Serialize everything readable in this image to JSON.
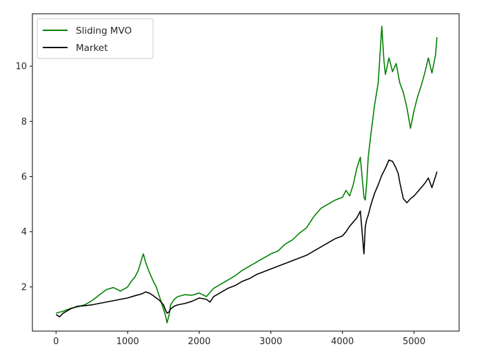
{
  "chart_data": {
    "type": "line",
    "title": "",
    "xlabel": "",
    "ylabel": "",
    "xlim": [
      -330,
      5630
    ],
    "ylim": [
      0.4,
      11.9
    ],
    "x_ticks": [
      0,
      1000,
      2000,
      3000,
      4000,
      5000
    ],
    "y_ticks": [
      2,
      4,
      6,
      8,
      10
    ],
    "grid": false,
    "legend_position": "top-left",
    "series": [
      {
        "name": "Sliding MVO",
        "color": "#008000",
        "x": [
          0,
          100,
          200,
          300,
          400,
          500,
          600,
          700,
          800,
          900,
          1000,
          1050,
          1100,
          1150,
          1200,
          1220,
          1250,
          1300,
          1350,
          1400,
          1450,
          1500,
          1530,
          1550,
          1580,
          1600,
          1650,
          1700,
          1800,
          1900,
          2000,
          2100,
          2150,
          2200,
          2300,
          2400,
          2500,
          2600,
          2700,
          2800,
          2900,
          3000,
          3100,
          3200,
          3300,
          3400,
          3500,
          3600,
          3700,
          3800,
          3900,
          4000,
          4050,
          4100,
          4150,
          4200,
          4250,
          4300,
          4320,
          4340,
          4360,
          4400,
          4450,
          4500,
          4550,
          4580,
          4600,
          4650,
          4700,
          4750,
          4800,
          4850,
          4900,
          4950,
          5000,
          5050,
          5100,
          5150,
          5200,
          5250,
          5300,
          5320
        ],
        "values": [
          1.05,
          1.12,
          1.22,
          1.28,
          1.35,
          1.5,
          1.7,
          1.9,
          1.98,
          1.85,
          2.0,
          2.2,
          2.35,
          2.6,
          3.05,
          3.2,
          2.9,
          2.55,
          2.25,
          2.0,
          1.6,
          1.2,
          0.95,
          0.7,
          1.0,
          1.35,
          1.55,
          1.65,
          1.72,
          1.7,
          1.78,
          1.65,
          1.8,
          1.95,
          2.1,
          2.25,
          2.4,
          2.6,
          2.75,
          2.9,
          3.05,
          3.2,
          3.3,
          3.55,
          3.7,
          3.95,
          4.15,
          4.55,
          4.85,
          5.0,
          5.15,
          5.25,
          5.5,
          5.3,
          5.7,
          6.3,
          6.7,
          5.25,
          5.15,
          5.8,
          6.7,
          7.6,
          8.6,
          9.4,
          11.45,
          10.2,
          9.7,
          10.3,
          9.8,
          10.1,
          9.4,
          9.05,
          8.5,
          7.75,
          8.4,
          8.9,
          9.3,
          9.75,
          10.3,
          9.75,
          10.4,
          11.05
        ]
      },
      {
        "name": "Market",
        "color": "#000000",
        "x": [
          0,
          50,
          100,
          200,
          300,
          400,
          500,
          600,
          700,
          800,
          900,
          1000,
          1100,
          1200,
          1250,
          1300,
          1350,
          1400,
          1450,
          1500,
          1530,
          1550,
          1580,
          1600,
          1650,
          1700,
          1800,
          1900,
          2000,
          2100,
          2150,
          2200,
          2300,
          2400,
          2500,
          2600,
          2700,
          2800,
          2900,
          3000,
          3100,
          3200,
          3300,
          3400,
          3500,
          3600,
          3700,
          3800,
          3900,
          4000,
          4050,
          4100,
          4150,
          4200,
          4250,
          4300,
          4320,
          4340,
          4360,
          4400,
          4450,
          4500,
          4550,
          4600,
          4650,
          4700,
          4750,
          4780,
          4800,
          4850,
          4900,
          4950,
          5000,
          5050,
          5100,
          5150,
          5200,
          5250,
          5300,
          5320
        ],
        "values": [
          1.0,
          0.92,
          1.05,
          1.2,
          1.3,
          1.32,
          1.35,
          1.4,
          1.45,
          1.5,
          1.55,
          1.6,
          1.68,
          1.75,
          1.82,
          1.78,
          1.7,
          1.6,
          1.5,
          1.35,
          1.15,
          1.05,
          1.1,
          1.2,
          1.3,
          1.35,
          1.4,
          1.48,
          1.6,
          1.55,
          1.45,
          1.65,
          1.8,
          1.95,
          2.05,
          2.2,
          2.3,
          2.45,
          2.55,
          2.65,
          2.75,
          2.85,
          2.95,
          3.05,
          3.15,
          3.3,
          3.45,
          3.6,
          3.75,
          3.85,
          4.0,
          4.2,
          4.35,
          4.5,
          4.75,
          3.2,
          4.2,
          4.45,
          4.6,
          5.0,
          5.4,
          5.7,
          6.05,
          6.3,
          6.6,
          6.55,
          6.3,
          6.1,
          5.8,
          5.2,
          5.05,
          5.2,
          5.3,
          5.45,
          5.6,
          5.75,
          5.95,
          5.6,
          6.0,
          6.18
        ]
      }
    ]
  }
}
